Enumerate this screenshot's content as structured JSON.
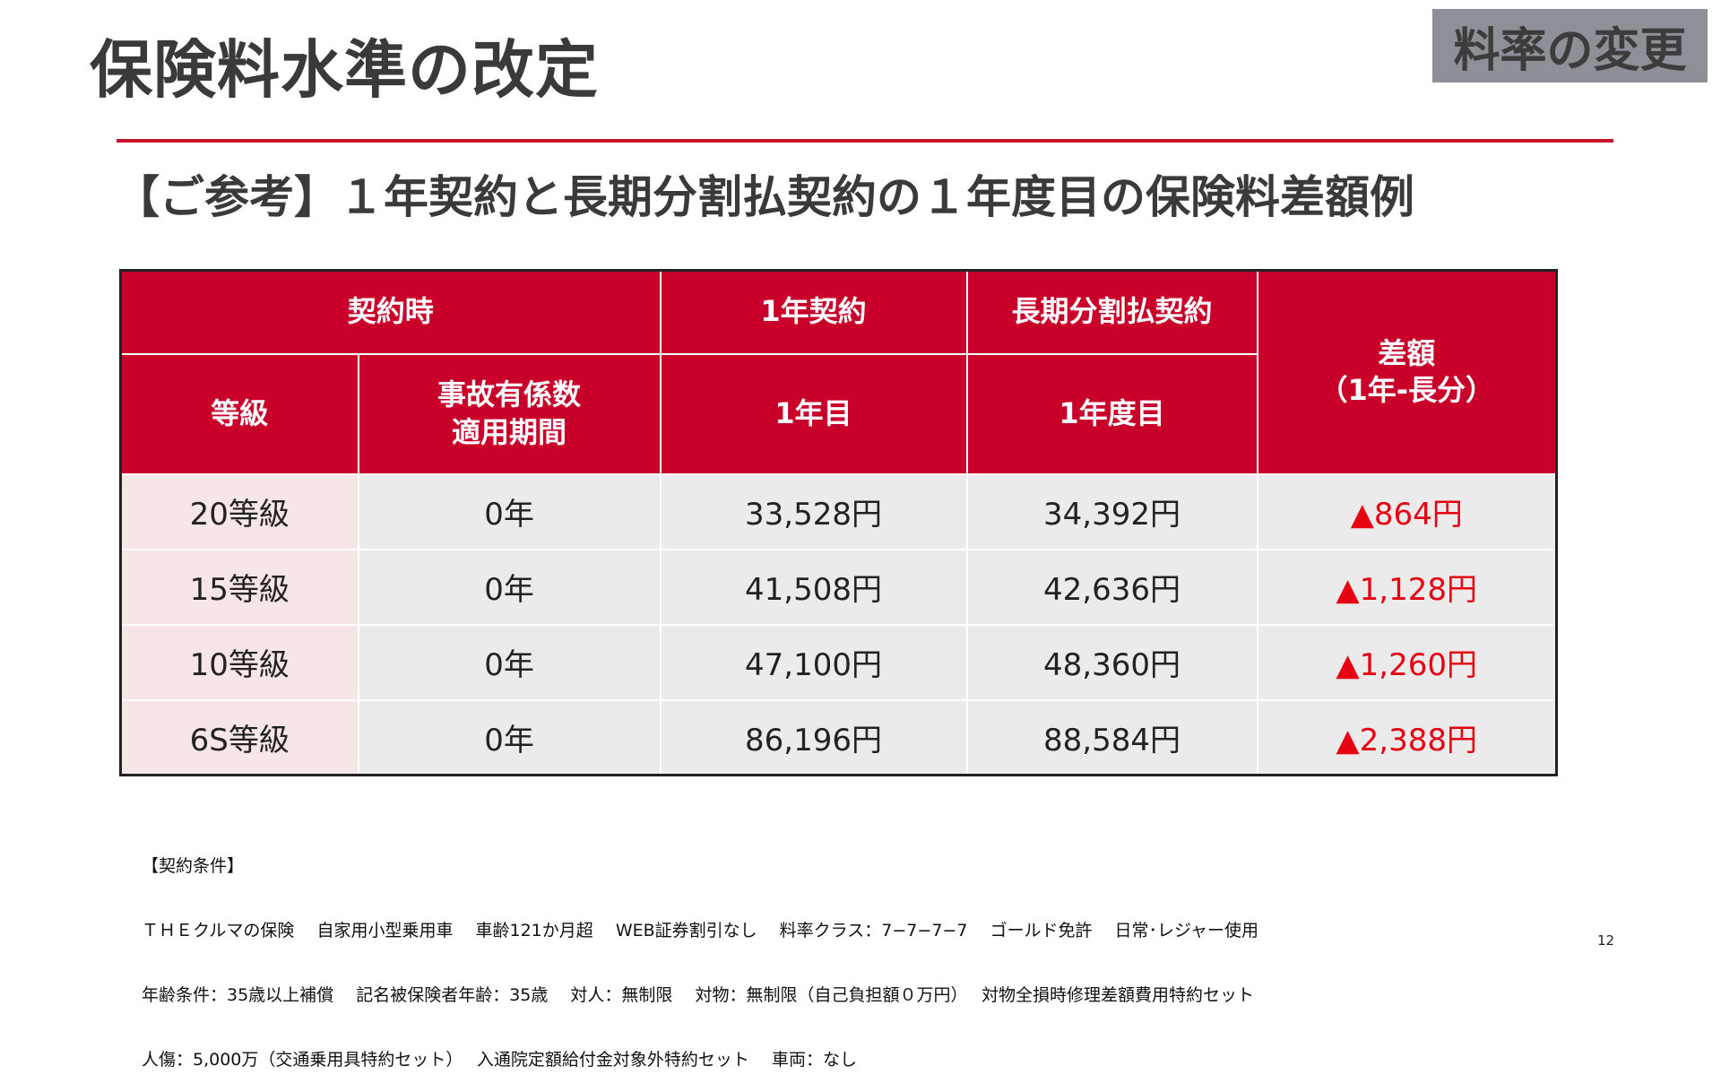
{
  "header": {
    "title": "保険料水準の改定",
    "badge": "料率の変更"
  },
  "subtitle": "【ご参考】１年契約と長期分割払契約の１年度目の保険料差額例",
  "table": {
    "group_headers": {
      "contract": "契約時",
      "one_year": "1年契約",
      "long_term": "長期分割払契約",
      "diff_line1": "差額",
      "diff_line2": "（1年-長分）"
    },
    "sub_headers": {
      "grade": "等級",
      "accident_line1": "事故有係数",
      "accident_line2": "適用期間",
      "year1": "1年目",
      "year1_long": "1年度目"
    },
    "rows": [
      {
        "grade": "20等級",
        "accident": "0年",
        "one_year": "33,528円",
        "long_term": "34,392円",
        "diff": "▲864円"
      },
      {
        "grade": "15等級",
        "accident": "0年",
        "one_year": "41,508円",
        "long_term": "42,636円",
        "diff": "▲1,128円"
      },
      {
        "grade": "10等級",
        "accident": "0年",
        "one_year": "47,100円",
        "long_term": "48,360円",
        "diff": "▲1,260円"
      },
      {
        "grade": "6S等級",
        "accident": "0年",
        "one_year": "86,196円",
        "long_term": "88,584円",
        "diff": "▲2,388円"
      }
    ]
  },
  "notes": [
    "【契約条件】",
    "ＴＨＥクルマの保険　 自家用小型乗用車　 車齢121か月超　 WEB証券割引なし　 料率クラス：7−7−7−7　 ゴールド免許　 日常･レジャー使用",
    "年齢条件：35歳以上補償　 記名被保険者年齢：35歳　 対人：無制限　 対物：無制限（自己負担額０万円）　 対物全損時修理差額費用特約セット",
    "人傷：5,000万（交通乗用具特約セット）　 入通院定額給付金対象外特約セット　 車両：なし"
  ],
  "page_number": "12",
  "colors": {
    "accent": "#c8002a",
    "diff_text": "#e60012",
    "badge_bg": "#8e9098"
  }
}
